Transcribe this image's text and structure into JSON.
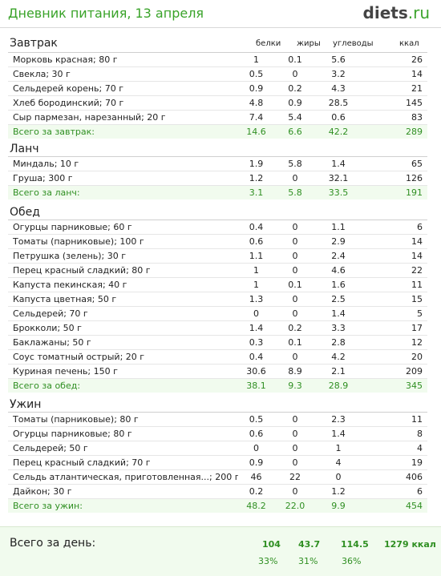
{
  "header": {
    "title": "Дневник питания, 13 апреля",
    "logo_main": "diets",
    "logo_tld": ".ru"
  },
  "columns": {
    "proteins": "белки",
    "fats": "жиры",
    "carbs": "углеводы",
    "kcal": "ккал"
  },
  "meals": [
    {
      "title": "Завтрак",
      "items": [
        {
          "name": "Морковь красная; 80 г",
          "b": "1",
          "zh": "0.1",
          "u": "5.6",
          "k": "26"
        },
        {
          "name": "Свекла; 30 г",
          "b": "0.5",
          "zh": "0",
          "u": "3.2",
          "k": "14"
        },
        {
          "name": "Сельдерей корень; 70 г",
          "b": "0.9",
          "zh": "0.2",
          "u": "4.3",
          "k": "21"
        },
        {
          "name": "Хлеб бородинский; 70 г",
          "b": "4.8",
          "zh": "0.9",
          "u": "28.5",
          "k": "145"
        },
        {
          "name": "Сыр пармезан, нарезанный; 20 г",
          "b": "7.4",
          "zh": "5.4",
          "u": "0.6",
          "k": "83"
        }
      ],
      "total": {
        "name": "Всего за завтрак:",
        "b": "14.6",
        "zh": "6.6",
        "u": "42.2",
        "k": "289"
      }
    },
    {
      "title": "Ланч",
      "items": [
        {
          "name": "Миндаль; 10 г",
          "b": "1.9",
          "zh": "5.8",
          "u": "1.4",
          "k": "65"
        },
        {
          "name": "Груша; 300 г",
          "b": "1.2",
          "zh": "0",
          "u": "32.1",
          "k": "126"
        }
      ],
      "total": {
        "name": "Всего за ланч:",
        "b": "3.1",
        "zh": "5.8",
        "u": "33.5",
        "k": "191"
      }
    },
    {
      "title": "Обед",
      "items": [
        {
          "name": "Огурцы парниковые; 60 г",
          "b": "0.4",
          "zh": "0",
          "u": "1.1",
          "k": "6"
        },
        {
          "name": "Томаты (парниковые); 100 г",
          "b": "0.6",
          "zh": "0",
          "u": "2.9",
          "k": "14"
        },
        {
          "name": "Петрушка (зелень); 30 г",
          "b": "1.1",
          "zh": "0",
          "u": "2.4",
          "k": "14"
        },
        {
          "name": "Перец красный сладкий; 80 г",
          "b": "1",
          "zh": "0",
          "u": "4.6",
          "k": "22"
        },
        {
          "name": "Капуста пекинская; 40 г",
          "b": "1",
          "zh": "0.1",
          "u": "1.6",
          "k": "11"
        },
        {
          "name": "Капуста цветная; 50 г",
          "b": "1.3",
          "zh": "0",
          "u": "2.5",
          "k": "15"
        },
        {
          "name": "Сельдерей; 70 г",
          "b": "0",
          "zh": "0",
          "u": "1.4",
          "k": "5"
        },
        {
          "name": "Брокколи; 50 г",
          "b": "1.4",
          "zh": "0.2",
          "u": "3.3",
          "k": "17"
        },
        {
          "name": "Баклажаны; 50 г",
          "b": "0.3",
          "zh": "0.1",
          "u": "2.8",
          "k": "12"
        },
        {
          "name": "Соус томатный острый; 20 г",
          "b": "0.4",
          "zh": "0",
          "u": "4.2",
          "k": "20"
        },
        {
          "name": "Куриная печень; 150 г",
          "b": "30.6",
          "zh": "8.9",
          "u": "2.1",
          "k": "209"
        }
      ],
      "total": {
        "name": "Всего за обед:",
        "b": "38.1",
        "zh": "9.3",
        "u": "28.9",
        "k": "345"
      }
    },
    {
      "title": "Ужин",
      "items": [
        {
          "name": "Томаты (парниковые); 80 г",
          "b": "0.5",
          "zh": "0",
          "u": "2.3",
          "k": "11"
        },
        {
          "name": "Огурцы парниковые; 80 г",
          "b": "0.6",
          "zh": "0",
          "u": "1.4",
          "k": "8"
        },
        {
          "name": "Сельдерей; 50 г",
          "b": "0",
          "zh": "0",
          "u": "1",
          "k": "4"
        },
        {
          "name": "Перец красный сладкий; 70 г",
          "b": "0.9",
          "zh": "0",
          "u": "4",
          "k": "19"
        },
        {
          "name": "Сельдь атлантическая, приготовленная...; 200 г",
          "b": "46",
          "zh": "22",
          "u": "0",
          "k": "406"
        },
        {
          "name": "Дайкон; 30 г",
          "b": "0.2",
          "zh": "0",
          "u": "1.2",
          "k": "6"
        }
      ],
      "total": {
        "name": "Всего за ужин:",
        "b": "48.2",
        "zh": "22.0",
        "u": "9.9",
        "k": "454"
      }
    }
  ],
  "day_total": {
    "label": "Всего за день:",
    "b": "104",
    "zh": "43.7",
    "u": "114.5",
    "k": "1279 ккал",
    "b_pct": "33%",
    "zh_pct": "31%",
    "u_pct": "36%"
  }
}
